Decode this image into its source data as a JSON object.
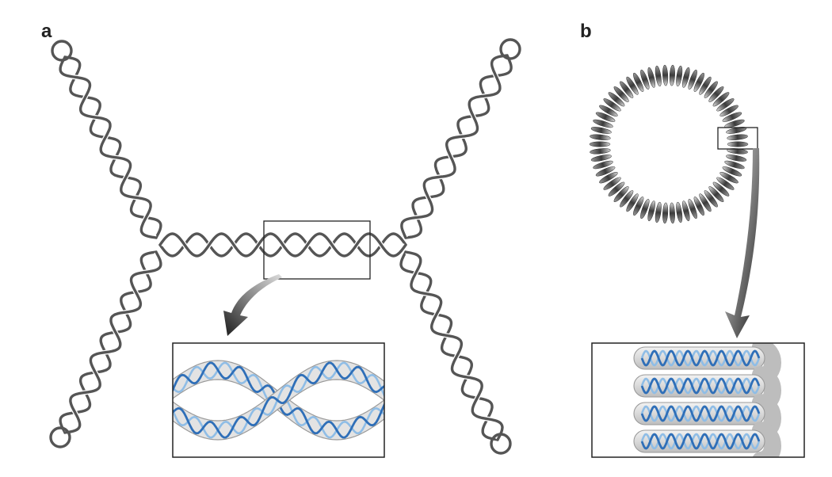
{
  "panels": [
    {
      "id": "a",
      "label": "a"
    },
    {
      "id": "b",
      "label": "b"
    }
  ],
  "colors": {
    "supercoil_strand": "#555555",
    "frame_stroke": "#222222",
    "dna_dark": "#2f6fb8",
    "dna_light": "#8fbde6",
    "tube_fill": "#e3e3e3",
    "tube_stroke": "#9a9a9a",
    "arrow_dark": "#1e1e1e",
    "arrow_light": "#cccccc",
    "toroid_dark": "#3c3c3c",
    "toroid_light": "#d0d0d0"
  },
  "icons": {
    "zoom_arrow": "curved-callout-arrow"
  }
}
